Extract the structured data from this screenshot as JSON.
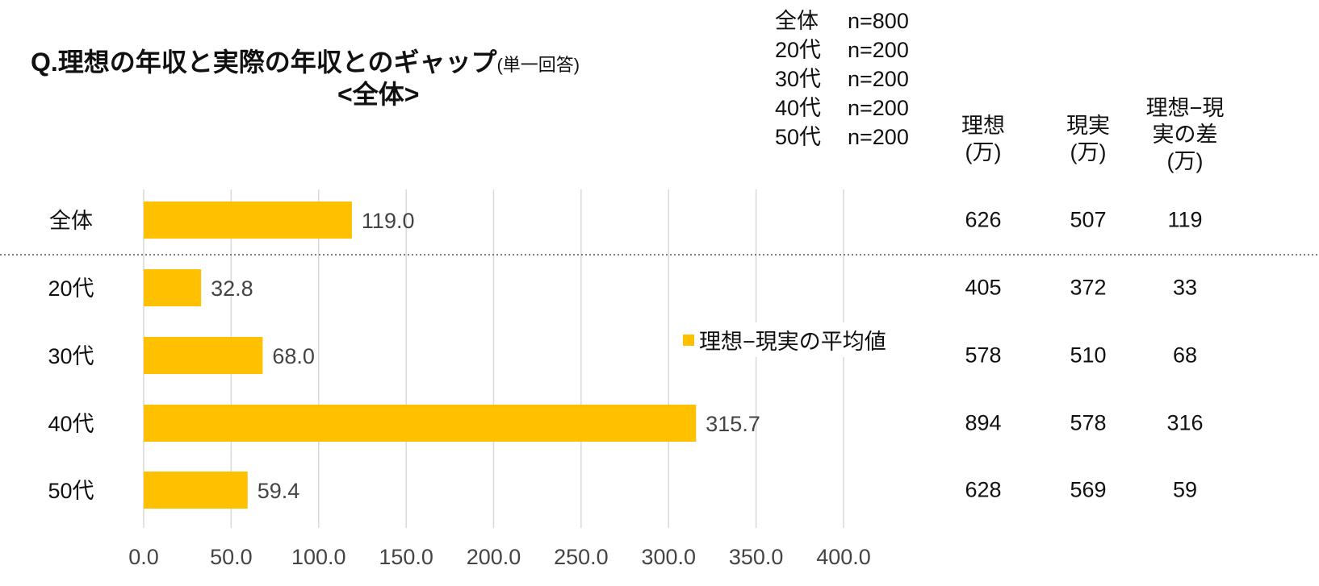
{
  "chart_data": {
    "type": "bar",
    "orientation": "horizontal",
    "title": "Q.理想の年収と実際の年収とのギャップ",
    "title_note": "(単一回答)",
    "subtitle": "<全体>",
    "categories": [
      "全体",
      "20代",
      "30代",
      "40代",
      "50代"
    ],
    "series": [
      {
        "name": "理想−現実の平均値",
        "values": [
          119.0,
          32.8,
          68.0,
          315.7,
          59.4
        ],
        "color": "#FFC000"
      }
    ],
    "xlim": [
      0,
      400
    ],
    "xticks": [
      "0.0",
      "50.0",
      "100.0",
      "150.0",
      "200.0",
      "250.0",
      "300.0",
      "350.0",
      "400.0"
    ],
    "data_labels": [
      "119.0",
      "32.8",
      "68.0",
      "315.7",
      "59.4"
    ],
    "grid": true,
    "legend": "center-right",
    "sample_sizes": [
      [
        "全体",
        "n=800"
      ],
      [
        "20代",
        "n=200"
      ],
      [
        "30代",
        "n=200"
      ],
      [
        "40代",
        "n=200"
      ],
      [
        "50代",
        "n=200"
      ]
    ],
    "table": {
      "headers": [
        [
          "理想",
          "(万)"
        ],
        [
          "現実",
          "(万)"
        ],
        [
          "理想−現",
          "実の差",
          "(万)"
        ]
      ],
      "rows": [
        [
          "626",
          "507",
          "119"
        ],
        [
          "405",
          "372",
          "33"
        ],
        [
          "578",
          "510",
          "68"
        ],
        [
          "894",
          "578",
          "316"
        ],
        [
          "628",
          "569",
          "59"
        ]
      ]
    }
  }
}
